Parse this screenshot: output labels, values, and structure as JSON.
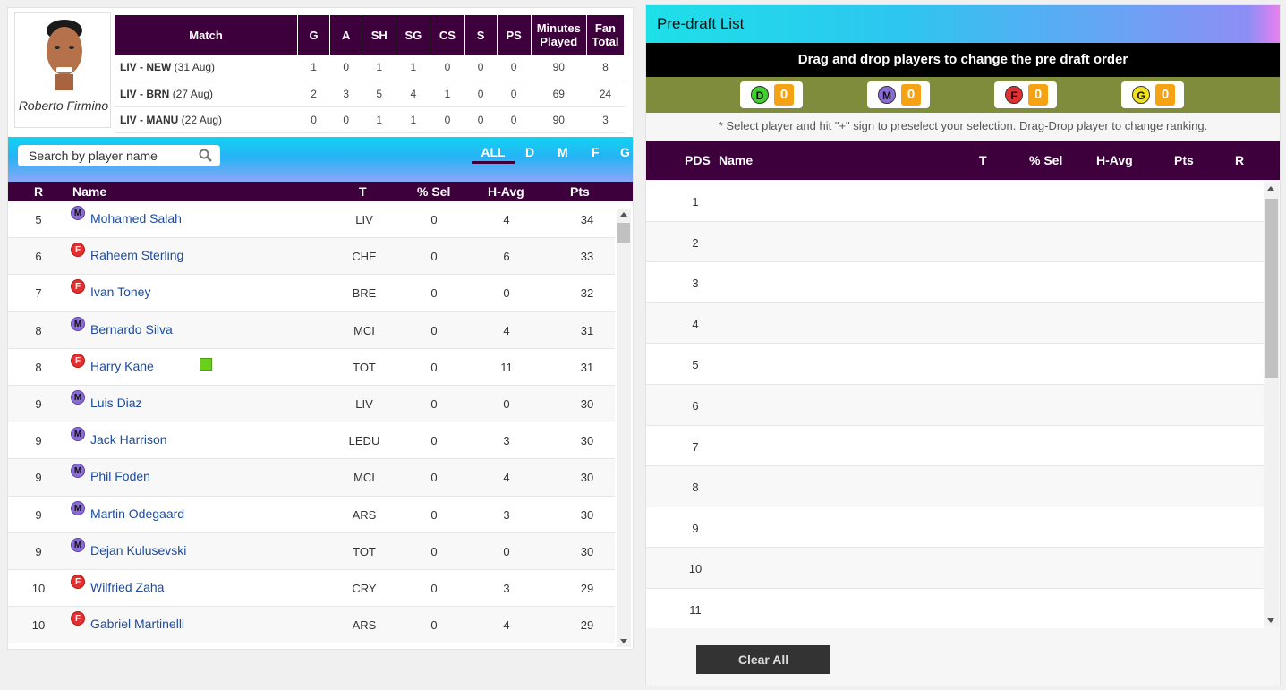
{
  "player_card": {
    "name": "Roberto Firmino"
  },
  "match_table": {
    "headers": [
      "Match",
      "G",
      "A",
      "SH",
      "SG",
      "CS",
      "S",
      "PS",
      "Minutes Played",
      "Fan Total"
    ],
    "rows": [
      {
        "teams": "LIV - NEW",
        "date": "(31 Aug)",
        "cells": [
          "1",
          "0",
          "1",
          "1",
          "0",
          "0",
          "0",
          "90",
          "8"
        ]
      },
      {
        "teams": "LIV - BRN",
        "date": "(27 Aug)",
        "cells": [
          "2",
          "3",
          "5",
          "4",
          "1",
          "0",
          "0",
          "69",
          "24"
        ]
      },
      {
        "teams": "LIV - MANU",
        "date": "(22 Aug)",
        "cells": [
          "0",
          "0",
          "1",
          "1",
          "0",
          "0",
          "0",
          "90",
          "3"
        ]
      }
    ]
  },
  "search": {
    "placeholder": "Search by player name"
  },
  "filters": [
    "ALL",
    "D",
    "M",
    "F",
    "G"
  ],
  "player_table": {
    "headers": [
      "R",
      "Name",
      "T",
      "% Sel",
      "H-Avg",
      "Pts"
    ],
    "rows": [
      {
        "r": "5",
        "pos": "M",
        "name": "Mohamed Salah",
        "team": "LIV",
        "sel": "0",
        "havg": "4",
        "pts": "34"
      },
      {
        "r": "6",
        "pos": "F",
        "name": "Raheem Sterling",
        "team": "CHE",
        "sel": "0",
        "havg": "6",
        "pts": "33"
      },
      {
        "r": "7",
        "pos": "F",
        "name": "Ivan Toney",
        "team": "BRE",
        "sel": "0",
        "havg": "0",
        "pts": "32"
      },
      {
        "r": "8",
        "pos": "M",
        "name": "Bernardo Silva",
        "team": "MCI",
        "sel": "0",
        "havg": "4",
        "pts": "31"
      },
      {
        "r": "8",
        "pos": "F",
        "name": "Harry Kane",
        "team": "TOT",
        "sel": "0",
        "havg": "11",
        "pts": "31",
        "flag": true
      },
      {
        "r": "9",
        "pos": "M",
        "name": "Luis Diaz",
        "team": "LIV",
        "sel": "0",
        "havg": "0",
        "pts": "30"
      },
      {
        "r": "9",
        "pos": "M",
        "name": "Jack Harrison",
        "team": "LEDU",
        "sel": "0",
        "havg": "3",
        "pts": "30"
      },
      {
        "r": "9",
        "pos": "M",
        "name": "Phil Foden",
        "team": "MCI",
        "sel": "0",
        "havg": "4",
        "pts": "30"
      },
      {
        "r": "9",
        "pos": "M",
        "name": "Martin Odegaard",
        "team": "ARS",
        "sel": "0",
        "havg": "3",
        "pts": "30"
      },
      {
        "r": "9",
        "pos": "M",
        "name": "Dejan Kulusevski",
        "team": "TOT",
        "sel": "0",
        "havg": "0",
        "pts": "30"
      },
      {
        "r": "10",
        "pos": "F",
        "name": "Wilfried Zaha",
        "team": "CRY",
        "sel": "0",
        "havg": "3",
        "pts": "29"
      },
      {
        "r": "10",
        "pos": "F",
        "name": "Gabriel Martinelli",
        "team": "ARS",
        "sel": "0",
        "havg": "4",
        "pts": "29"
      }
    ]
  },
  "predraft": {
    "title": "Pre-draft List",
    "instruction": "Drag and drop players to change the pre draft order",
    "counters": [
      {
        "pos": "D",
        "count": "0",
        "color": "#3fcf2e"
      },
      {
        "pos": "M",
        "count": "0",
        "color": "#8a6bd8"
      },
      {
        "pos": "F",
        "count": "0",
        "color": "#e23030"
      },
      {
        "pos": "G",
        "count": "0",
        "color": "#f2e21a"
      }
    ],
    "hint": "* Select player and hit \"+\" sign to preselect your selection. Drag-Drop player to change ranking.",
    "headers": [
      "PDS",
      "Name",
      "T",
      "% Sel",
      "H-Avg",
      "Pts",
      "R"
    ],
    "rows": [
      "1",
      "2",
      "3",
      "4",
      "5",
      "6",
      "7",
      "8",
      "9",
      "10",
      "11"
    ],
    "clear_label": "Clear All"
  }
}
